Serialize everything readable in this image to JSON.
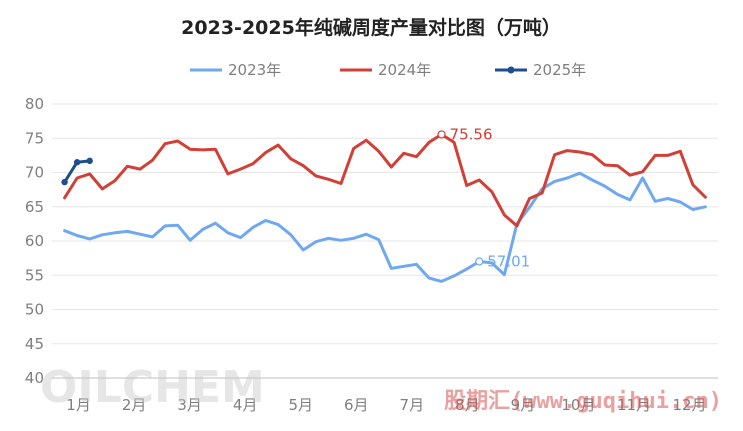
{
  "chart_data": {
    "type": "line",
    "title": "2023-2025年纯碱周度产量对比图（万吨）",
    "xlabel": "",
    "ylabel": "",
    "ylim": [
      40,
      80
    ],
    "yticks": [
      40,
      45,
      50,
      55,
      60,
      65,
      70,
      75,
      80
    ],
    "xlim": [
      0,
      53
    ],
    "month_labels": [
      "1月",
      "2月",
      "3月",
      "4月",
      "5月",
      "6月",
      "7月",
      "8月",
      "9月",
      "10月",
      "11月",
      "12月"
    ],
    "grid": "horizontal",
    "legend_position": "top",
    "series": [
      {
        "name": "2023年",
        "color": "#6fa8f0",
        "x": [
          1,
          2,
          3,
          4,
          5,
          6,
          7,
          8,
          9,
          10,
          11,
          12,
          13,
          14,
          15,
          16,
          17,
          18,
          19,
          20,
          21,
          22,
          23,
          24,
          25,
          26,
          27,
          28,
          29,
          30,
          31,
          32,
          33,
          34,
          35,
          36,
          37,
          38,
          39,
          40,
          41,
          42,
          43,
          44,
          45,
          46,
          47,
          48,
          49,
          50,
          51,
          52
        ],
        "values": [
          61.5,
          60.8,
          60.3,
          60.9,
          61.2,
          61.4,
          61.0,
          60.6,
          62.2,
          62.3,
          60.1,
          61.7,
          62.6,
          61.2,
          60.5,
          62.0,
          63.0,
          62.4,
          60.9,
          58.7,
          59.9,
          60.4,
          60.1,
          60.4,
          61.0,
          60.2,
          56.0,
          56.3,
          56.6,
          54.6,
          54.1,
          54.9,
          55.9,
          57.01,
          56.8,
          55.1,
          62.5,
          64.9,
          67.6,
          68.7,
          69.2,
          69.9,
          68.9,
          68.0,
          66.8,
          66.0,
          69.2,
          65.8,
          66.2,
          65.7,
          64.6,
          65.0
        ]
      },
      {
        "name": "2024年",
        "color": "#d23f36",
        "x": [
          1,
          2,
          3,
          4,
          5,
          6,
          7,
          8,
          9,
          10,
          11,
          12,
          13,
          14,
          15,
          16,
          17,
          18,
          19,
          20,
          21,
          22,
          23,
          24,
          25,
          26,
          27,
          28,
          29,
          30,
          31,
          32,
          33,
          34,
          35,
          36,
          37,
          38,
          39,
          40,
          41,
          42,
          43,
          44,
          45,
          46,
          47,
          48,
          49,
          50,
          51,
          52
        ],
        "values": [
          66.3,
          69.2,
          69.8,
          67.6,
          68.8,
          70.9,
          70.5,
          71.8,
          74.2,
          74.6,
          73.4,
          73.3,
          73.4,
          69.8,
          70.5,
          71.3,
          72.9,
          74.0,
          72.0,
          71.0,
          69.5,
          69.0,
          68.4,
          73.5,
          74.7,
          73.1,
          70.8,
          72.8,
          72.3,
          74.4,
          75.56,
          74.4,
          68.1,
          68.9,
          67.2,
          63.8,
          62.2,
          66.2,
          67.0,
          72.6,
          73.2,
          73.0,
          72.6,
          71.1,
          71.0,
          69.6,
          70.1,
          72.5,
          72.5,
          73.1,
          68.2,
          66.4
        ]
      },
      {
        "name": "2025年",
        "color": "#1f4e8c",
        "x": [
          1,
          2,
          3
        ],
        "values": [
          68.6,
          71.5,
          71.7
        ]
      }
    ],
    "annotations": [
      {
        "series": "2024年",
        "x": 31,
        "y": 75.56,
        "text": "75.56",
        "color": "#d23f36"
      },
      {
        "series": "2023年",
        "x": 34,
        "y": 57.01,
        "text": "57.01",
        "color": "#6fa8f0"
      }
    ]
  },
  "watermarks": {
    "brand": "OILCHEM",
    "site": "股期汇(www.guqihui.cn)"
  }
}
